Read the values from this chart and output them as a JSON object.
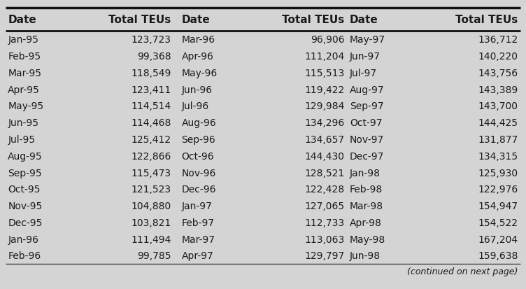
{
  "columns": [
    "Date",
    "Total TEUs",
    "Date",
    "Total TEUs",
    "Date",
    "Total TEUs"
  ],
  "col1_dates": [
    "Jan-95",
    "Feb-95",
    "Mar-95",
    "Apr-95",
    "May-95",
    "Jun-95",
    "Jul-95",
    "Aug-95",
    "Sep-95",
    "Oct-95",
    "Nov-95",
    "Dec-95",
    "Jan-96",
    "Feb-96"
  ],
  "col1_teus": [
    "123,723",
    "99,368",
    "118,549",
    "123,411",
    "114,514",
    "114,468",
    "125,412",
    "122,866",
    "115,473",
    "121,523",
    "104,880",
    "103,821",
    "111,494",
    "99,785"
  ],
  "col2_dates": [
    "Mar-96",
    "Apr-96",
    "May-96",
    "Jun-96",
    "Jul-96",
    "Aug-96",
    "Sep-96",
    "Oct-96",
    "Nov-96",
    "Dec-96",
    "Jan-97",
    "Feb-97",
    "Mar-97",
    "Apr-97"
  ],
  "col2_teus": [
    "96,906",
    "111,204",
    "115,513",
    "119,422",
    "129,984",
    "134,296",
    "134,657",
    "144,430",
    "128,521",
    "122,428",
    "127,065",
    "112,733",
    "113,063",
    "129,797"
  ],
  "col3_dates": [
    "May-97",
    "Jun-97",
    "Jul-97",
    "Aug-97",
    "Sep-97",
    "Oct-97",
    "Nov-97",
    "Dec-97",
    "Jan-98",
    "Feb-98",
    "Mar-98",
    "Apr-98",
    "May-98",
    "Jun-98"
  ],
  "col3_teus": [
    "136,712",
    "140,220",
    "143,756",
    "143,389",
    "143,700",
    "144,425",
    "131,877",
    "134,315",
    "125,930",
    "122,976",
    "154,947",
    "154,522",
    "167,204",
    "159,638"
  ],
  "footer_note": "(continued on next page)",
  "bg_color": "#d4d4d4",
  "header_fontsize": 11,
  "body_fontsize": 10,
  "text_color": "#1a1a1a"
}
